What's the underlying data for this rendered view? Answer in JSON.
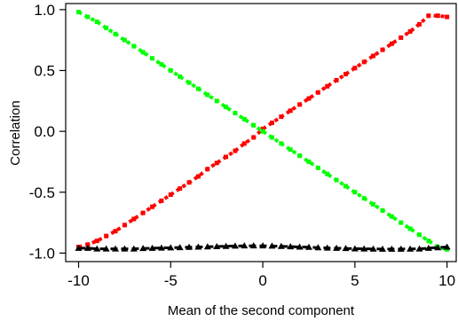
{
  "chart_data": {
    "type": "scatter",
    "xlabel": "Mean of the second component",
    "ylabel": "Correlation",
    "xlim": [
      -10.7,
      10.5
    ],
    "ylim": [
      -1.07,
      1.05
    ],
    "x_ticks": [
      -10,
      -5,
      0,
      5,
      10
    ],
    "x_tick_labels": [
      "-10",
      "-5",
      "0",
      "5",
      "10"
    ],
    "y_ticks": [
      -1.0,
      -0.5,
      0.0,
      0.5,
      1.0
    ],
    "y_tick_labels": [
      "-1.0",
      "-0.5",
      "0.0",
      "0.5",
      "1.0"
    ],
    "grid": false,
    "series": [
      {
        "color": "#ff0000",
        "marker": "square",
        "x": [
          -10,
          -9.5,
          -9,
          -8.5,
          -8,
          -7.5,
          -7,
          -6.5,
          -6,
          -5.5,
          -5,
          -4.5,
          -4,
          -3.5,
          -3,
          -2.5,
          -2,
          -1.5,
          -1,
          -0.5,
          0,
          0.5,
          1,
          1.5,
          2,
          2.5,
          3,
          3.5,
          4,
          4.5,
          5,
          5.5,
          6,
          6.5,
          7,
          7.5,
          8,
          8.5,
          9,
          9.5,
          10
        ],
        "y": [
          -0.95,
          -0.93,
          -0.9,
          -0.86,
          -0.82,
          -0.77,
          -0.72,
          -0.67,
          -0.62,
          -0.57,
          -0.52,
          -0.47,
          -0.42,
          -0.37,
          -0.31,
          -0.26,
          -0.21,
          -0.16,
          -0.1,
          -0.05,
          0.02,
          0.07,
          0.12,
          0.17,
          0.22,
          0.27,
          0.32,
          0.37,
          0.42,
          0.47,
          0.52,
          0.57,
          0.62,
          0.67,
          0.72,
          0.77,
          0.82,
          0.88,
          0.95,
          0.95,
          0.94
        ]
      },
      {
        "color": "#00ff00",
        "marker": "square",
        "x": [
          -10,
          -9.5,
          -9,
          -8.5,
          -8,
          -7.5,
          -7,
          -6.5,
          -6,
          -5.5,
          -5,
          -4.5,
          -4,
          -3.5,
          -3,
          -2.5,
          -2,
          -1.5,
          -1,
          -0.5,
          0,
          0.5,
          1,
          1.5,
          2,
          2.5,
          3,
          3.5,
          4,
          4.5,
          5,
          5.5,
          6,
          6.5,
          7,
          7.5,
          8,
          8.5,
          9,
          9.5,
          10
        ],
        "y": [
          0.98,
          0.94,
          0.9,
          0.85,
          0.8,
          0.75,
          0.7,
          0.65,
          0.6,
          0.55,
          0.5,
          0.45,
          0.4,
          0.35,
          0.3,
          0.25,
          0.2,
          0.15,
          0.1,
          0.05,
          0.0,
          -0.05,
          -0.1,
          -0.15,
          -0.2,
          -0.25,
          -0.3,
          -0.35,
          -0.4,
          -0.45,
          -0.5,
          -0.55,
          -0.6,
          -0.65,
          -0.7,
          -0.75,
          -0.8,
          -0.85,
          -0.9,
          -0.95,
          -0.97
        ]
      },
      {
        "color": "#000000",
        "marker": "triangle",
        "x": [
          -10,
          -9.5,
          -9,
          -8.5,
          -8,
          -7.5,
          -7,
          -6.5,
          -6,
          -5.5,
          -5,
          -4.5,
          -4,
          -3.5,
          -3,
          -2.5,
          -2,
          -1.5,
          -1,
          -0.5,
          0,
          0.5,
          1,
          1.5,
          2,
          2.5,
          3,
          3.5,
          4,
          4.5,
          5,
          5.5,
          6,
          6.5,
          7,
          7.5,
          8,
          8.5,
          9,
          9.5,
          10
        ],
        "y": [
          -0.96,
          -0.96,
          -0.965,
          -0.965,
          -0.965,
          -0.965,
          -0.965,
          -0.962,
          -0.96,
          -0.958,
          -0.956,
          -0.954,
          -0.952,
          -0.95,
          -0.948,
          -0.946,
          -0.944,
          -0.942,
          -0.94,
          -0.94,
          -0.94,
          -0.942,
          -0.944,
          -0.947,
          -0.95,
          -0.952,
          -0.955,
          -0.958,
          -0.96,
          -0.962,
          -0.964,
          -0.965,
          -0.966,
          -0.967,
          -0.967,
          -0.967,
          -0.966,
          -0.965,
          -0.96,
          -0.955,
          -0.95
        ]
      }
    ]
  }
}
